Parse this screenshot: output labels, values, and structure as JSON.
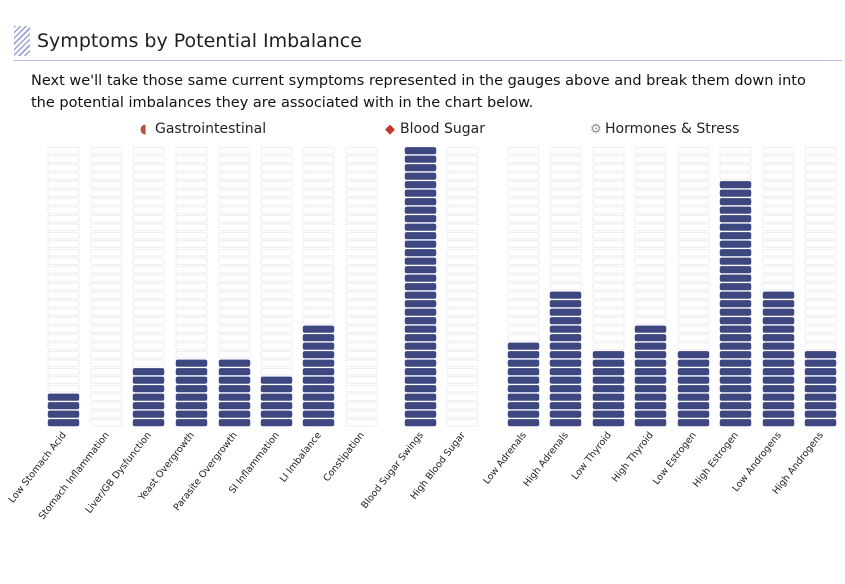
{
  "section": {
    "title": "Symptoms by Potential Imbalance",
    "intro": "Next we'll take those same current symptoms represented in the gauges above and break them down into the potential imbalances they are associated with in the chart below."
  },
  "colors": {
    "filled": "#3d4780",
    "empty_fill": "#ffffff",
    "empty_stroke": "#eceef4",
    "rule": "#b9bde6",
    "hatch": "#9aa3d8"
  },
  "chart_data": {
    "type": "bar",
    "grid": false,
    "groups": [
      {
        "name": "Gastrointestinal",
        "icon": "stomach-icon",
        "icon_color": "#b5533c",
        "categories": [
          "Low Stomach Acid",
          "Stomach Inflammation",
          "Liver/GB Dysfunction",
          "Yeast Overgrowth",
          "Parasite Overgrowth",
          "SI Inflammation",
          "LI Imbalance",
          "Constipation"
        ],
        "values": [
          4,
          0,
          7,
          8,
          8,
          6,
          12,
          0
        ]
      },
      {
        "name": "Blood Sugar",
        "icon": "blood-drop-icon",
        "icon_color": "#c0392b",
        "categories": [
          "Blood Sugar Swings",
          "High Blood Sugar"
        ],
        "values": [
          33,
          0
        ]
      },
      {
        "name": "Hormones & Stress",
        "icon": "gear-icon",
        "icon_color": "#8a9199",
        "categories": [
          "Low Adrenals",
          "High Adrenals",
          "Low Thyroid",
          "High Thyroid",
          "Low Estrogen",
          "High Estrogen",
          "Low Androgens",
          "High Androgens"
        ],
        "values": [
          10,
          16,
          9,
          12,
          9,
          29,
          16,
          9
        ]
      }
    ],
    "ylim": [
      0,
      33
    ]
  }
}
